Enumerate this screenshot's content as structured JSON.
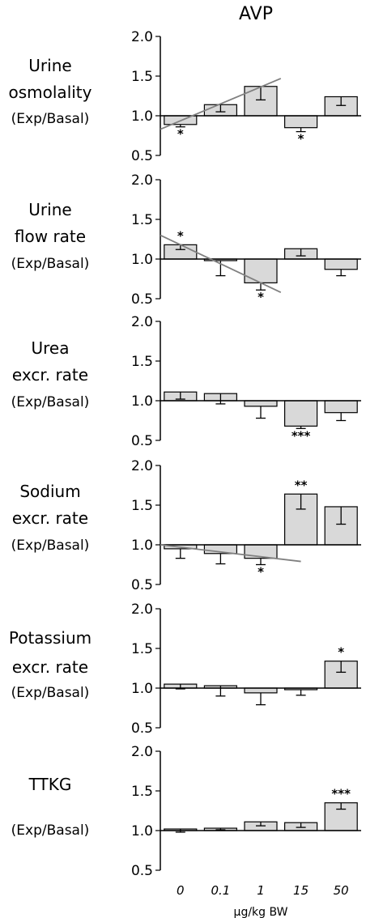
{
  "chart_data": {
    "title": "AVP",
    "type": "bar",
    "categories": [
      "0",
      "0.1",
      "1",
      "15",
      "50"
    ],
    "xlabel": "µg/kg BW",
    "yticks": [
      "0.5",
      "1.0",
      "1.5",
      "2.0"
    ],
    "ylim": [
      0.5,
      2.0
    ],
    "baseline": 1.0,
    "bar_color": "#d9d9d9",
    "trend_color": "#808080",
    "panels": [
      {
        "label_lines": [
          "Urine",
          "osmolality",
          "(Exp/Basal)"
        ],
        "values": [
          0.89,
          1.14,
          1.37,
          0.85,
          1.24
        ],
        "errors": [
          0.03,
          0.09,
          0.17,
          0.05,
          0.11
        ],
        "error_dir": [
          "down",
          "down",
          "down",
          "down",
          "down"
        ],
        "stars": [
          "*",
          "",
          "",
          "*",
          ""
        ],
        "trend": [
          [
            0,
            0.83
          ],
          [
            2,
            1.47
          ]
        ]
      },
      {
        "label_lines": [
          "Urine",
          "flow rate",
          "(Exp/Basal)"
        ],
        "values": [
          1.18,
          0.98,
          0.7,
          1.13,
          0.87
        ],
        "errors": [
          0.06,
          0.19,
          0.09,
          0.09,
          0.08
        ],
        "error_dir": [
          "down",
          "down",
          "down",
          "down",
          "down"
        ],
        "stars": [
          "*",
          "",
          "*",
          "",
          ""
        ],
        "trend": [
          [
            0,
            1.3
          ],
          [
            2,
            0.58
          ]
        ]
      },
      {
        "label_lines": [
          "Urea",
          "excr. rate",
          "(Exp/Basal)"
        ],
        "values": [
          1.11,
          1.09,
          0.93,
          0.68,
          0.85
        ],
        "errors": [
          0.09,
          0.13,
          0.15,
          0.03,
          0.1
        ],
        "error_dir": [
          "down",
          "down",
          "down",
          "down",
          "down"
        ],
        "stars": [
          "",
          "",
          "",
          "***",
          ""
        ],
        "trend": null
      },
      {
        "label_lines": [
          "Sodium",
          "excr. rate",
          "(Exp/Basal)"
        ],
        "values": [
          0.95,
          0.89,
          0.83,
          1.64,
          1.48
        ],
        "errors": [
          0.12,
          0.13,
          0.08,
          0.19,
          0.22
        ],
        "error_dir": [
          "down",
          "down",
          "down",
          "down",
          "down"
        ],
        "stars": [
          "",
          "",
          "*",
          "**",
          ""
        ],
        "trend": [
          [
            0,
            1.0
          ],
          [
            2.5,
            0.79
          ]
        ]
      },
      {
        "label_lines": [
          "Potassium",
          "excr. rate",
          "(Exp/Basal)"
        ],
        "values": [
          1.05,
          1.03,
          0.94,
          0.98,
          1.34
        ],
        "errors": [
          0.06,
          0.13,
          0.15,
          0.07,
          0.14
        ],
        "error_dir": [
          "down",
          "down",
          "down",
          "down",
          "down"
        ],
        "stars": [
          "",
          "",
          "",
          "",
          "*"
        ],
        "trend": null
      },
      {
        "label_lines": [
          "TTKG",
          "(Exp/Basal)"
        ],
        "values": [
          1.02,
          1.03,
          1.11,
          1.1,
          1.35
        ],
        "errors": [
          0.04,
          0.02,
          0.05,
          0.06,
          0.08
        ],
        "error_dir": [
          "down",
          "down",
          "down",
          "down",
          "down"
        ],
        "stars": [
          "",
          "",
          "",
          "",
          "***"
        ],
        "trend": null
      }
    ]
  }
}
